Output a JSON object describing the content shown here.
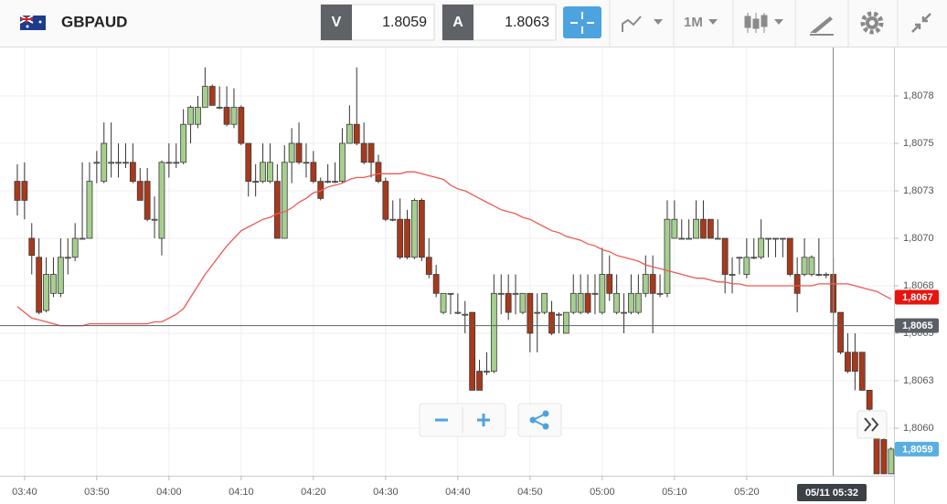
{
  "toolbar": {
    "symbol": "GBPAUD",
    "bid_label": "V",
    "bid": 1.8059,
    "ask_label": "A",
    "ask": 1.8063,
    "timeframe": "1M"
  },
  "chart_data": {
    "type": "candlestick",
    "categories": [
      null,
      "03:40",
      null,
      null,
      null,
      null,
      null,
      null,
      null,
      null,
      null,
      "03:50",
      null,
      null,
      null,
      null,
      null,
      null,
      null,
      null,
      null,
      "04:00",
      null,
      null,
      null,
      null,
      null,
      null,
      null,
      null,
      null,
      "04:10",
      null,
      null,
      null,
      null,
      null,
      null,
      null,
      null,
      null,
      "04:20",
      null,
      null,
      null,
      null,
      null,
      null,
      null,
      null,
      null,
      "04:30",
      null,
      null,
      null,
      null,
      null,
      null,
      null,
      null,
      null,
      "04:40",
      null,
      null,
      null,
      null,
      null,
      null,
      null,
      null,
      null,
      "04:50",
      null,
      null,
      null,
      null,
      null,
      null,
      null,
      null,
      null,
      "05:00",
      null,
      null,
      null,
      null,
      null,
      null,
      null,
      null,
      null,
      "05:10",
      null,
      null,
      null,
      null,
      null,
      null,
      null,
      null,
      null,
      "05:20",
      null,
      null,
      null,
      null,
      null,
      null,
      null,
      null,
      null,
      null,
      null,
      null,
      null,
      null,
      null,
      null,
      null,
      null,
      null,
      null
    ],
    "open": [
      1.8073,
      1.8073,
      1.807,
      1.8069,
      1.80662,
      1.80671,
      1.80671,
      1.8069,
      1.8069,
      1.807,
      1.807,
      1.8074,
      1.8073,
      1.8074,
      1.8074,
      1.8074,
      1.8074,
      1.8073,
      1.8073,
      1.8071,
      1.807,
      1.8074,
      1.8074,
      1.8074,
      1.8076,
      1.8076,
      1.80769,
      1.8078,
      1.80769,
      1.80769,
      1.8076,
      1.80769,
      1.8075,
      1.8073,
      1.8073,
      1.8073,
      1.8073,
      1.807,
      1.8074,
      1.8075,
      1.8074,
      1.8074,
      1.8073,
      1.8073,
      1.8073,
      1.8073,
      1.8075,
      1.8076,
      1.8075,
      1.8075,
      1.8074,
      1.8073,
      1.8071,
      1.8071,
      1.8071,
      1.8069,
      1.8072,
      1.8069,
      1.80681,
      1.80661,
      1.80671,
      1.80661,
      1.8066,
      1.80661,
      1.8063,
      1.8063,
      1.8063,
      1.80671,
      1.80671,
      1.80671,
      1.80661,
      1.80671,
      1.80661,
      1.80661,
      1.80661,
      1.8066,
      1.8065,
      1.80661,
      1.80661,
      1.80671,
      1.80671,
      1.80661,
      1.80681,
      1.80661,
      1.80661,
      1.80661,
      1.80661,
      1.80671,
      1.80681,
      1.80671,
      1.80671,
      1.807,
      1.807,
      1.807,
      1.807,
      1.8071,
      1.8071,
      1.807,
      1.807,
      1.80681,
      1.8069,
      1.80681,
      1.8069,
      1.8069,
      1.807,
      1.807,
      1.807,
      1.807,
      1.80681,
      1.80681,
      1.80681,
      1.80681,
      1.80681,
      1.80681,
      1.80661,
      1.8064,
      1.8064,
      1.8064,
      1.8062,
      1.806,
      1.80594,
      1.80576
    ],
    "high": [
      1.80739,
      1.8074,
      1.80708,
      1.807,
      1.8069,
      1.8069,
      1.807,
      1.807,
      1.80708,
      1.8074,
      1.8074,
      1.80746,
      1.80761,
      1.80761,
      1.8075,
      1.8075,
      1.8075,
      1.80737,
      1.80737,
      1.80722,
      1.80741,
      1.8075,
      1.8075,
      1.80768,
      1.8077,
      1.80775,
      1.8079,
      1.80781,
      1.8078,
      1.8078,
      1.80779,
      1.8077,
      1.8075,
      1.80739,
      1.8075,
      1.8075,
      1.80739,
      1.80749,
      1.80758,
      1.80761,
      1.8075,
      1.80746,
      1.80732,
      1.80739,
      1.8074,
      1.80758,
      1.8077,
      1.8079,
      1.80761,
      1.8075,
      1.80744,
      1.80732,
      1.8072,
      1.80721,
      1.80715,
      1.80721,
      1.80721,
      1.807,
      1.80686,
      1.80671,
      1.80671,
      1.80671,
      1.80667,
      1.80661,
      1.80636,
      1.8064,
      1.80681,
      1.80681,
      1.80681,
      1.80681,
      1.80671,
      1.80671,
      1.80671,
      1.80671,
      1.80667,
      1.80661,
      1.80661,
      1.80681,
      1.80681,
      1.80681,
      1.80681,
      1.80695,
      1.80691,
      1.80681,
      1.80671,
      1.80681,
      1.80681,
      1.80691,
      1.80691,
      1.80681,
      1.8072,
      1.8072,
      1.8071,
      1.8071,
      1.8072,
      1.8072,
      1.8071,
      1.8071,
      1.807,
      1.8069,
      1.8069,
      1.807,
      1.807,
      1.8071,
      1.807,
      1.807,
      1.807,
      1.807,
      1.8069,
      1.807,
      1.80691,
      1.807,
      1.80682,
      1.8069,
      1.80661,
      1.8065,
      1.8065,
      1.8064,
      1.8062,
      1.806,
      1.806,
      1.8059
    ],
    "low": [
      1.80712,
      1.8071,
      1.80681,
      1.8066,
      1.80661,
      1.80669,
      1.80669,
      1.80681,
      1.80688,
      1.807,
      1.807,
      1.80729,
      1.80729,
      1.80732,
      1.80732,
      1.80737,
      1.80729,
      1.8072,
      1.80709,
      1.807,
      1.80691,
      1.80732,
      1.80737,
      1.80739,
      1.8075,
      1.80758,
      1.80769,
      1.8077,
      1.80768,
      1.80759,
      1.80758,
      1.80749,
      1.80722,
      1.80722,
      1.80729,
      1.80729,
      1.807,
      1.807,
      1.80729,
      1.80739,
      1.80732,
      1.80729,
      1.8072,
      1.80729,
      1.80729,
      1.80729,
      1.8075,
      1.80749,
      1.80739,
      1.80732,
      1.80729,
      1.80709,
      1.80709,
      1.80689,
      1.80689,
      1.80689,
      1.80688,
      1.80679,
      1.80669,
      1.8066,
      1.8066,
      1.8066,
      1.8065,
      1.8062,
      1.8062,
      1.80628,
      1.80629,
      1.8066,
      1.80657,
      1.8066,
      1.8066,
      1.8064,
      1.8064,
      1.8066,
      1.80649,
      1.8065,
      1.8065,
      1.8066,
      1.8066,
      1.8066,
      1.8066,
      1.8066,
      1.80667,
      1.8066,
      1.8065,
      1.8066,
      1.8066,
      1.80669,
      1.8065,
      1.80669,
      1.80669,
      1.807,
      1.807,
      1.807,
      1.807,
      1.807,
      1.807,
      1.807,
      1.80671,
      1.80671,
      1.80681,
      1.80679,
      1.80689,
      1.80689,
      1.8069,
      1.8069,
      1.8069,
      1.8068,
      1.80661,
      1.8068,
      1.8068,
      1.8068,
      1.80679,
      1.8065,
      1.80639,
      1.80629,
      1.8062,
      1.8062,
      1.80608,
      1.80576,
      1.80576,
      1.80576
    ],
    "close": [
      1.8072,
      1.8072,
      1.80691,
      1.80661,
      1.80681,
      1.80681,
      1.8069,
      1.8069,
      1.807,
      1.807,
      1.8073,
      1.8074,
      1.8075,
      1.8074,
      1.8074,
      1.8074,
      1.8073,
      1.8072,
      1.8071,
      1.8071,
      1.8074,
      1.8074,
      1.8074,
      1.8076,
      1.80769,
      1.80769,
      1.8078,
      1.8077,
      1.80769,
      1.8076,
      1.80769,
      1.8075,
      1.8073,
      1.8073,
      1.8074,
      1.8074,
      1.807,
      1.8074,
      1.8075,
      1.8074,
      1.8074,
      1.8073,
      1.80721,
      1.8073,
      1.8073,
      1.8075,
      1.8076,
      1.8075,
      1.8074,
      1.8074,
      1.8073,
      1.8071,
      1.8071,
      1.8069,
      1.8069,
      1.8072,
      1.8069,
      1.80681,
      1.80671,
      1.80671,
      1.80671,
      1.80661,
      1.8066,
      1.8062,
      1.8062,
      1.8063,
      1.80671,
      1.80671,
      1.80661,
      1.80671,
      1.80671,
      1.8065,
      1.80661,
      1.80671,
      1.8065,
      1.8066,
      1.80661,
      1.80671,
      1.80671,
      1.80661,
      1.80671,
      1.80681,
      1.80671,
      1.80671,
      1.80661,
      1.80671,
      1.80671,
      1.80681,
      1.80671,
      1.80671,
      1.8071,
      1.8071,
      1.807,
      1.807,
      1.8071,
      1.807,
      1.807,
      1.807,
      1.80681,
      1.80681,
      1.8069,
      1.8069,
      1.8069,
      1.807,
      1.807,
      1.807,
      1.807,
      1.80681,
      1.80671,
      1.8069,
      1.8069,
      1.80681,
      1.80681,
      1.80661,
      1.8064,
      1.8063,
      1.8063,
      1.8062,
      1.8061,
      1.80576,
      1.80576,
      1.80589
    ],
    "up_color": "#a6cf8f",
    "down_color": "#a8391b",
    "moving_average": {
      "color": "#ec5a52",
      "values": [
        1.80664,
        1.80661,
        1.80658,
        1.80657,
        1.80656,
        1.80655,
        1.80654,
        1.80654,
        1.80654,
        1.80654,
        1.80655,
        1.80655,
        1.80655,
        1.80655,
        1.80655,
        1.80655,
        1.80655,
        1.80655,
        1.80655,
        1.80656,
        1.80656,
        1.80658,
        1.8066,
        1.80663,
        1.80669,
        1.80675,
        1.80681,
        1.80686,
        1.80691,
        1.80696,
        1.807,
        1.80704,
        1.80706,
        1.80708,
        1.8071,
        1.80711,
        1.80713,
        1.80714,
        1.80716,
        1.80719,
        1.80721,
        1.80724,
        1.80725,
        1.80727,
        1.80728,
        1.80729,
        1.80731,
        1.80732,
        1.80732,
        1.80733,
        1.80734,
        1.80734,
        1.80734,
        1.80734,
        1.80735,
        1.80735,
        1.80734,
        1.80733,
        1.80732,
        1.80731,
        1.80728,
        1.80726,
        1.80725,
        1.80723,
        1.80721,
        1.80719,
        1.80717,
        1.80715,
        1.80714,
        1.80713,
        1.80711,
        1.8071,
        1.80708,
        1.80706,
        1.80704,
        1.80703,
        1.80701,
        1.807,
        1.80699,
        1.80697,
        1.80696,
        1.80694,
        1.80693,
        1.80691,
        1.8069,
        1.80689,
        1.80688,
        1.80686,
        1.80685,
        1.80684,
        1.80683,
        1.80682,
        1.80681,
        1.8068,
        1.80679,
        1.80679,
        1.80678,
        1.80677,
        1.80677,
        1.80676,
        1.80676,
        1.80675,
        1.80675,
        1.80675,
        1.80675,
        1.80675,
        1.80675,
        1.80675,
        1.80675,
        1.80675,
        1.80675,
        1.80676,
        1.80676,
        1.80676,
        1.80676,
        1.80676,
        1.80675,
        1.80674,
        1.80673,
        1.80672,
        1.8067,
        1.80668
      ]
    },
    "ylim": [
      1.80575,
      1.808
    ],
    "yticks": [
      {
        "value": 1.806,
        "label": "1,8060"
      },
      {
        "value": 1.80625,
        "label": "1,8063"
      },
      {
        "value": 1.8065,
        "label": "1,8065"
      },
      {
        "value": 1.80675,
        "label": "1,8068"
      },
      {
        "value": 1.807,
        "label": "1,8070"
      },
      {
        "value": 1.80725,
        "label": "1,8073"
      },
      {
        "value": 1.8075,
        "label": "1,8075"
      },
      {
        "value": 1.80775,
        "label": "1,8078"
      }
    ],
    "grid": true,
    "price_markers": [
      {
        "value": 1.80669,
        "label": "1,8067",
        "color": "#e8140e"
      },
      {
        "value": 1.80654,
        "label": "1,8065",
        "color": "#5b6066",
        "line": true
      },
      {
        "value": 1.80589,
        "label": "1,8059",
        "color": "#5aaee0"
      }
    ],
    "crosshair_label": "05/11 05:32"
  }
}
